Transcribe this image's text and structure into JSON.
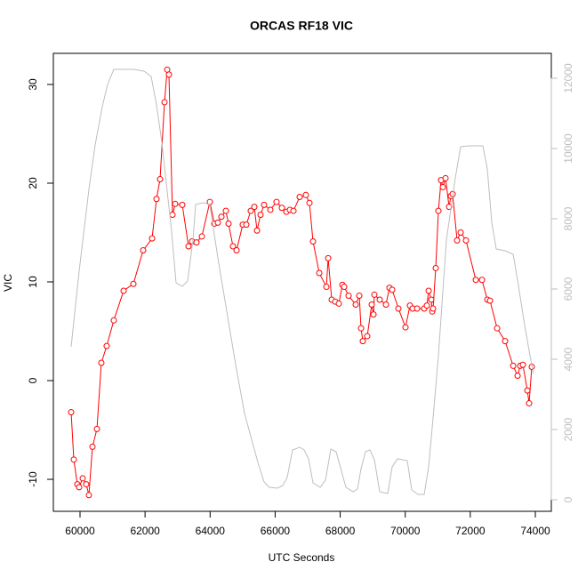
{
  "chart_data": {
    "type": "line",
    "title": "ORCAS RF18 VIC",
    "x_label": "UTC Seconds",
    "y_label": "VIC",
    "xlim": [
      59180,
      74492
    ],
    "xticks": [
      60000,
      62000,
      64000,
      66000,
      68000,
      70000,
      72000,
      74000
    ],
    "ylim": [
      -13.24,
      33.15
    ],
    "yticks": [
      -10,
      0,
      10,
      20,
      30
    ],
    "y2lim": [
      -329,
      12709
    ],
    "y2ticks": [
      0,
      2000,
      4000,
      6000,
      8000,
      10000,
      12000
    ],
    "y2_color": "#bebebe",
    "series": [
      {
        "color": "#ff0000",
        "markers": true,
        "x": [
          59727,
          59809,
          59918,
          59973,
          60082,
          60191,
          60273,
          60383,
          60520,
          60656,
          60820,
          61039,
          61340,
          61641,
          61941,
          62215,
          62352,
          62461,
          62598,
          62680,
          62734,
          62844,
          62926,
          63145,
          63336,
          63446,
          63582,
          63746,
          63992,
          64129,
          64238,
          64348,
          64485,
          64567,
          64703,
          64813,
          65004,
          65113,
          65250,
          65360,
          65442,
          65551,
          65660,
          65852,
          66043,
          66207,
          66344,
          66453,
          66563,
          66754,
          66945,
          67055,
          67164,
          67356,
          67575,
          67630,
          67739,
          67848,
          67958,
          68067,
          68122,
          68258,
          68477,
          68587,
          68641,
          68696,
          68832,
          68969,
          69024,
          69051,
          69215,
          69407,
          69516,
          69598,
          69790,
          70008,
          70145,
          70227,
          70364,
          70583,
          70665,
          70719,
          70801,
          70829,
          70856,
          70938,
          71020,
          71102,
          71157,
          71239,
          71348,
          71403,
          71458,
          71594,
          71704,
          71868,
          72169,
          72360,
          72524,
          72606,
          72825,
          73071,
          73318,
          73455,
          73536,
          73618,
          73755,
          73809,
          73891
        ],
        "values": [
          -3.2,
          -8.0,
          -10.5,
          -10.8,
          -9.9,
          -10.5,
          -11.6,
          -6.7,
          -4.9,
          1.8,
          3.5,
          6.1,
          9.1,
          9.8,
          13.2,
          14.4,
          18.4,
          20.4,
          28.2,
          31.5,
          31.0,
          16.8,
          17.9,
          17.8,
          13.6,
          14.1,
          14.0,
          14.6,
          18.1,
          15.9,
          16.0,
          16.6,
          17.2,
          15.9,
          13.6,
          13.2,
          15.8,
          15.8,
          17.2,
          17.6,
          15.2,
          16.8,
          17.8,
          17.3,
          18.1,
          17.5,
          17.1,
          17.3,
          17.2,
          18.6,
          18.8,
          18.0,
          14.1,
          10.9,
          9.5,
          12.4,
          8.2,
          8.0,
          7.8,
          9.7,
          9.5,
          8.6,
          7.7,
          8.6,
          5.3,
          4.0,
          4.5,
          7.7,
          6.7,
          8.7,
          8.2,
          7.7,
          9.4,
          9.2,
          7.3,
          5.4,
          7.6,
          7.3,
          7.3,
          7.3,
          7.6,
          9.1,
          8.2,
          7.0,
          7.3,
          11.4,
          17.2,
          20.3,
          19.6,
          20.5,
          17.6,
          18.7,
          18.9,
          14.2,
          15.0,
          14.2,
          10.2,
          10.2,
          8.2,
          8.1,
          5.3,
          4.0,
          1.5,
          0.5,
          1.5,
          1.6,
          -1.0,
          -2.3,
          1.4
        ]
      },
      {
        "color": "#bebebe",
        "axis": "y2",
        "x": [
          59727,
          59973,
          60273,
          60465,
          60684,
          60848,
          61039,
          61641,
          61969,
          62188,
          62352,
          62516,
          62680,
          62816,
          62953,
          63145,
          63309,
          63473,
          63555,
          63774,
          63992,
          64238,
          64512,
          64785,
          65059,
          65469,
          65660,
          65824,
          66070,
          66234,
          66371,
          66535,
          66754,
          66890,
          67027,
          67164,
          67383,
          67547,
          67712,
          67876,
          68040,
          68176,
          68395,
          68532,
          68641,
          68778,
          68915,
          69051,
          69215,
          69461,
          69598,
          69762,
          70063,
          70200,
          70391,
          70583,
          70719,
          70856,
          71020,
          71266,
          71540,
          71704,
          71950,
          72388,
          72524,
          72661,
          72798,
          73071,
          73318,
          73455,
          73646,
          73836,
          73946
        ],
        "values": [
          4354,
          6506,
          8835,
          10101,
          11190,
          11823,
          12253,
          12253,
          12203,
          12051,
          11241,
          10177,
          8785,
          7646,
          6177,
          6076,
          6228,
          7392,
          8405,
          8456,
          8405,
          6886,
          5367,
          3848,
          2456,
          1063,
          506,
          354,
          329,
          405,
          633,
          1418,
          1494,
          1418,
          1165,
          481,
          354,
          557,
          1443,
          1367,
          810,
          354,
          228,
          304,
          886,
          1367,
          1418,
          1139,
          228,
          177,
          937,
          1165,
          1114,
          278,
          152,
          152,
          937,
          2329,
          4101,
          7392,
          9165,
          10051,
          10076,
          10076,
          9418,
          7899,
          7139,
          7089,
          6987,
          6253,
          5114,
          4101,
          3595
        ]
      }
    ]
  }
}
